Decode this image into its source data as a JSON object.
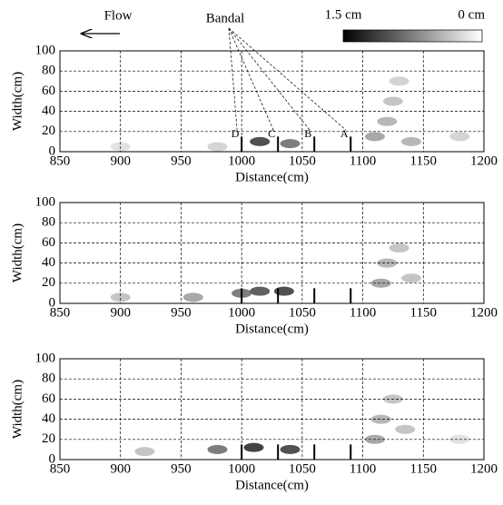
{
  "chart_data": [
    {
      "type": "heatmap",
      "xlabel": "Distance(cm)",
      "ylabel": "Width(cm)",
      "xlim": [
        850,
        1200
      ],
      "ylim": [
        0,
        100
      ],
      "xticks": [
        850,
        900,
        950,
        1000,
        1050,
        1100,
        1150,
        1200
      ],
      "yticks": [
        0,
        20,
        40,
        60,
        80,
        100
      ],
      "grid": true,
      "colorscale": [
        "#000000",
        "#ffffff"
      ],
      "depth_range": [
        1.5,
        0
      ],
      "colorbar_labels": [
        "1.5 cm",
        "0 cm"
      ],
      "flow_label": "Flow",
      "bandal_label": "Bandal",
      "bandal_names": [
        "D",
        "C",
        "B",
        "A"
      ],
      "bandal_x": [
        1000,
        1030,
        1060,
        1090
      ],
      "bandal_height": 15,
      "cells": {
        "x": [
          900,
          980,
          1015,
          1040,
          1110,
          1120,
          1125,
          1130,
          1140,
          1180
        ],
        "y": [
          5,
          5,
          10,
          8,
          15,
          30,
          50,
          70,
          10,
          15
        ],
        "depth": [
          0.2,
          0.3,
          1.2,
          0.9,
          0.6,
          0.5,
          0.4,
          0.3,
          0.5,
          0.3
        ]
      }
    },
    {
      "type": "heatmap",
      "xlabel": "Distance(cm)",
      "ylabel": "Width(cm)",
      "xlim": [
        850,
        1200
      ],
      "ylim": [
        0,
        100
      ],
      "xticks": [
        850,
        900,
        950,
        1000,
        1050,
        1100,
        1150,
        1200
      ],
      "yticks": [
        0,
        20,
        40,
        60,
        80,
        100
      ],
      "grid": true,
      "colorscale": [
        "#000000",
        "#ffffff"
      ],
      "depth_range": [
        1.5,
        0
      ],
      "bandal_x": [
        1000,
        1030,
        1060,
        1090
      ],
      "bandal_height": 15,
      "cells": {
        "x": [
          900,
          960,
          1000,
          1015,
          1035,
          1115,
          1120,
          1130,
          1140
        ],
        "y": [
          6,
          6,
          10,
          12,
          12,
          20,
          40,
          55,
          25
        ],
        "depth": [
          0.4,
          0.6,
          0.9,
          1.1,
          1.2,
          0.6,
          0.5,
          0.4,
          0.4
        ]
      }
    },
    {
      "type": "heatmap",
      "xlabel": "Distance(cm)",
      "ylabel": "Width(cm)",
      "xlim": [
        850,
        1200
      ],
      "ylim": [
        0,
        100
      ],
      "xticks": [
        850,
        900,
        950,
        1000,
        1050,
        1100,
        1150,
        1200
      ],
      "yticks": [
        0,
        20,
        40,
        60,
        80,
        100
      ],
      "grid": true,
      "colorscale": [
        "#000000",
        "#ffffff"
      ],
      "depth_range": [
        1.5,
        0
      ],
      "bandal_x": [
        1000,
        1030,
        1060,
        1090
      ],
      "bandal_height": 15,
      "cells": {
        "x": [
          920,
          980,
          1010,
          1040,
          1110,
          1115,
          1125,
          1135,
          1180
        ],
        "y": [
          8,
          10,
          12,
          10,
          20,
          40,
          60,
          30,
          20
        ],
        "depth": [
          0.4,
          0.9,
          1.3,
          1.2,
          0.6,
          0.5,
          0.4,
          0.4,
          0.2
        ]
      }
    }
  ]
}
